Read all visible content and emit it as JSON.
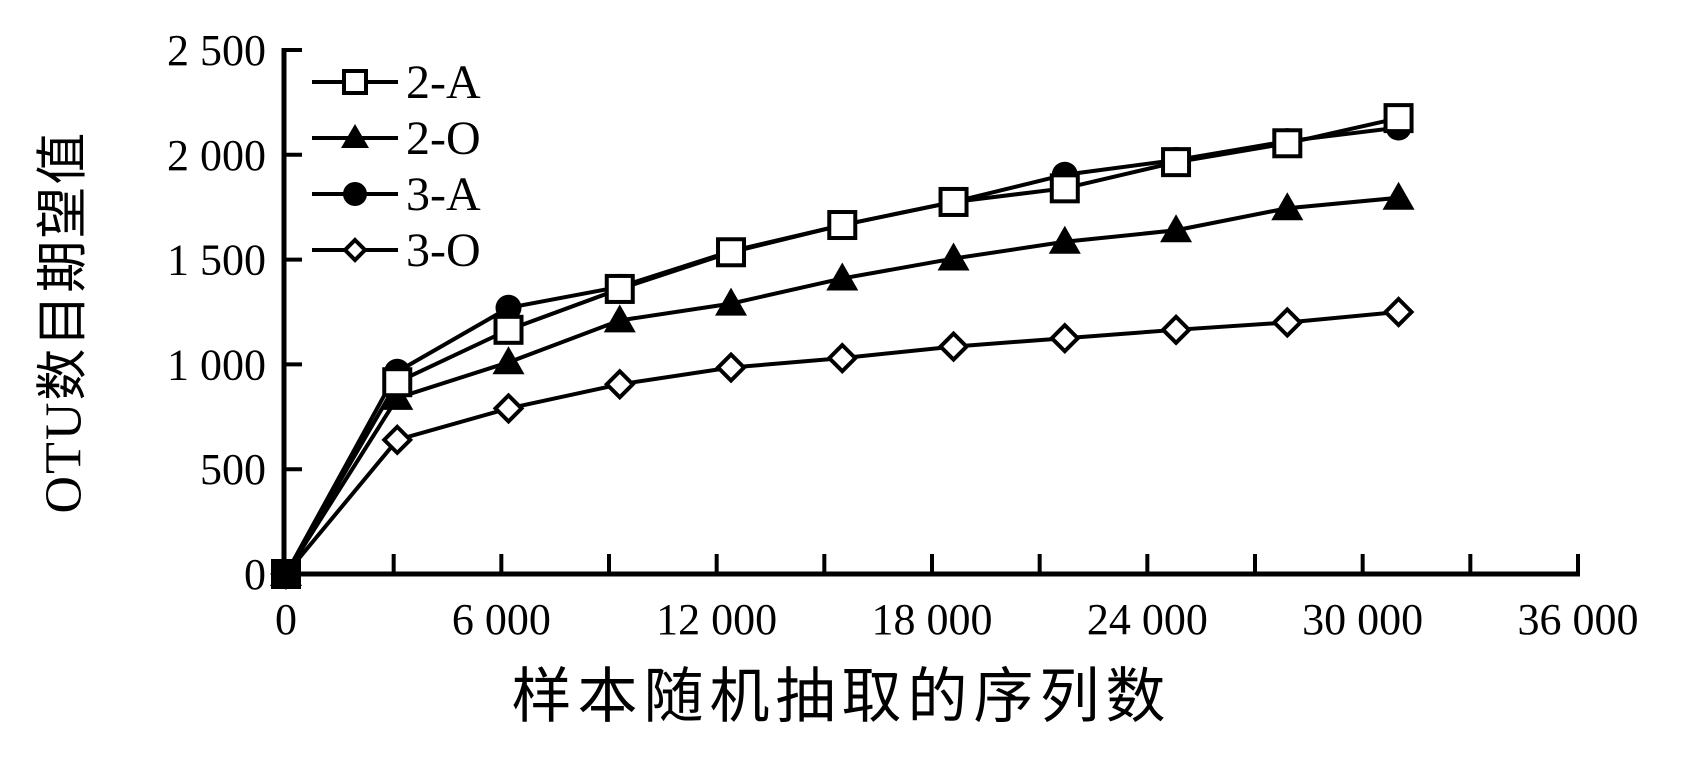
{
  "chart_data": {
    "type": "line",
    "title": "",
    "xlabel": "样本随机抽取的序列数",
    "ylabel": "OTU数目期望值",
    "xlim": [
      0,
      36000
    ],
    "ylim": [
      0,
      2500
    ],
    "x_major_tick": 6000,
    "x_minor_tick": 3000,
    "y_tick": 500,
    "x_tick_labels": [
      "0",
      "6 000",
      "12 000",
      "18 000",
      "24 000",
      "30 000",
      "36 000"
    ],
    "y_tick_labels": [
      "0",
      "500",
      "1 000",
      "1 500",
      "2 000",
      "2 500"
    ],
    "grid": false,
    "legend_position": "top-left-inside",
    "axis_color": "#000000",
    "background": "#ffffff",
    "x": [
      0,
      3100,
      6200,
      9300,
      12400,
      15500,
      18600,
      21700,
      24800,
      27900,
      31000
    ],
    "series": [
      {
        "name": "2-A",
        "marker": "square-open",
        "color": "#000000",
        "values": [
          0,
          915,
          1165,
          1360,
          1535,
          1665,
          1775,
          1840,
          1965,
          2055,
          2175
        ]
      },
      {
        "name": "2-O",
        "marker": "triangle-filled",
        "color": "#000000",
        "values": [
          0,
          840,
          1010,
          1210,
          1290,
          1410,
          1505,
          1585,
          1640,
          1745,
          1795
        ]
      },
      {
        "name": "3-A",
        "marker": "circle-filled",
        "color": "#000000",
        "values": [
          0,
          965,
          1270,
          1370,
          1540,
          1665,
          1775,
          1905,
          1975,
          2065,
          2130
        ]
      },
      {
        "name": "3-O",
        "marker": "diamond-open",
        "color": "#000000",
        "values": [
          0,
          640,
          790,
          905,
          985,
          1030,
          1085,
          1125,
          1165,
          1200,
          1250
        ]
      }
    ]
  }
}
